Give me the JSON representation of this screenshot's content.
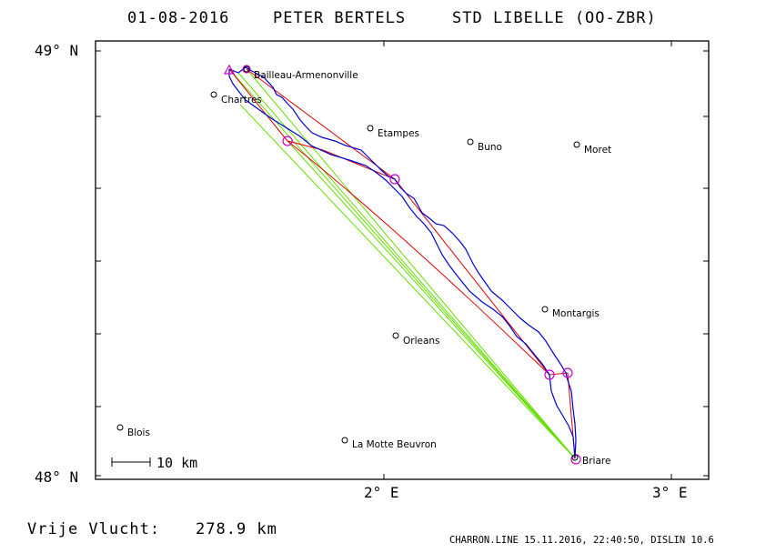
{
  "header": {
    "date": "01-08-2016",
    "pilot": "PETER BERTELS",
    "glider": "STD LIBELLE (OO-ZBR)"
  },
  "axes": {
    "lat_top": "49° N",
    "lat_bottom": "48° N",
    "lon_2": "2° E",
    "lon_3": "3° E"
  },
  "scale_label": "10 km",
  "distance": {
    "label": "Vrije Vlucht:",
    "value": "278.9 km"
  },
  "footer": "CHARRON.LINE 15.11.2016, 22:40:50, DISLIN 10.6",
  "colors": {
    "track": "#0000cc",
    "route": "#dd0000",
    "legs": "#66dd00",
    "turnpoints": "#cc00cc",
    "frame": "#000000"
  },
  "places": [
    {
      "name": "Bailleau-Armenonville"
    },
    {
      "name": "Chartres"
    },
    {
      "name": "Etampes"
    },
    {
      "name": "Buno"
    },
    {
      "name": "Moret"
    },
    {
      "name": "Montargis"
    },
    {
      "name": "Orleans"
    },
    {
      "name": "Blois"
    },
    {
      "name": "La Motte Beuvron"
    },
    {
      "name": "Briare"
    }
  ]
}
